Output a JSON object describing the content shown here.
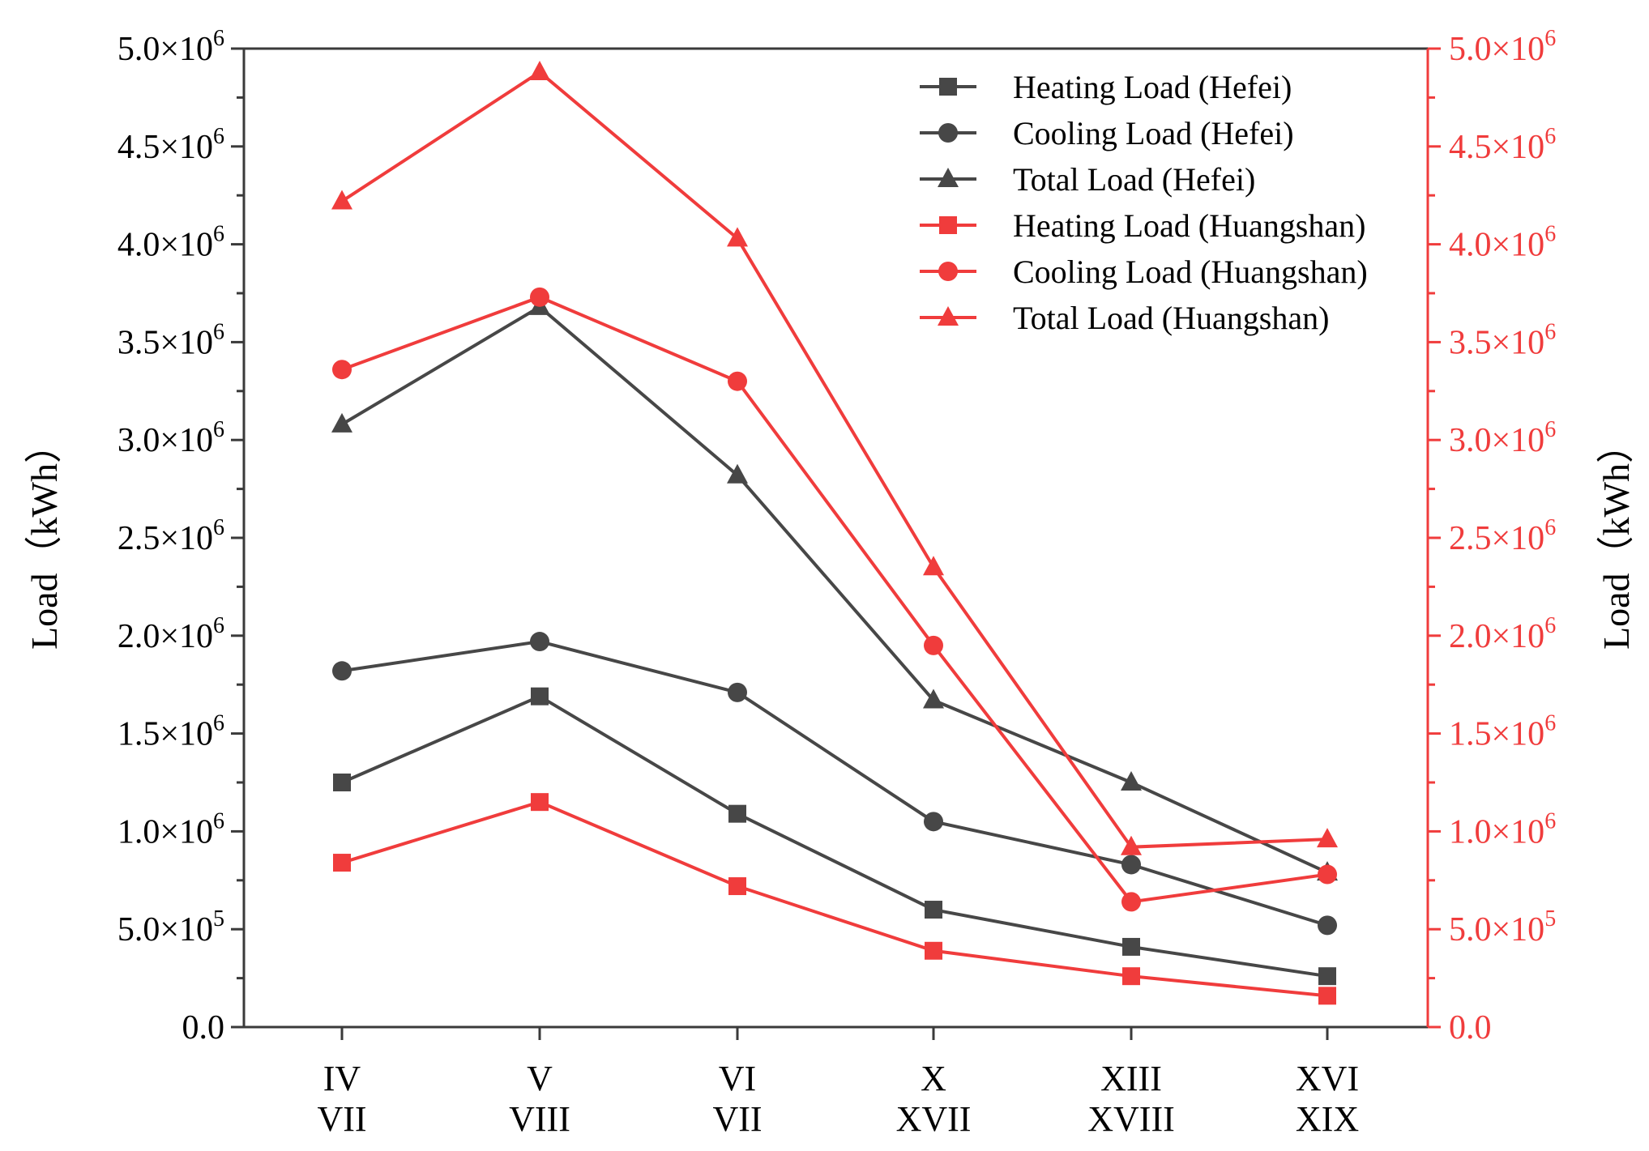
{
  "chart_data": {
    "type": "line",
    "categories": [
      [
        "IV",
        "VII"
      ],
      [
        "V",
        "VIII"
      ],
      [
        "VI",
        "VII"
      ],
      [
        "X",
        "XVII"
      ],
      [
        "XIII",
        "XVIII"
      ],
      [
        "XVI",
        "XIX"
      ]
    ],
    "y_left": {
      "label": "Load（kWh）",
      "ylim": [
        0,
        5000000
      ],
      "ticks": [
        {
          "value": 0,
          "mantissa": "0.0",
          "exp": ""
        },
        {
          "value": 500000,
          "mantissa": "5.0×10",
          "exp": "5"
        },
        {
          "value": 1000000,
          "mantissa": "1.0×10",
          "exp": "6"
        },
        {
          "value": 1500000,
          "mantissa": "1.5×10",
          "exp": "6"
        },
        {
          "value": 2000000,
          "mantissa": "2.0×10",
          "exp": "6"
        },
        {
          "value": 2500000,
          "mantissa": "2.5×10",
          "exp": "6"
        },
        {
          "value": 3000000,
          "mantissa": "3.0×10",
          "exp": "6"
        },
        {
          "value": 3500000,
          "mantissa": "3.5×10",
          "exp": "6"
        },
        {
          "value": 4000000,
          "mantissa": "4.0×10",
          "exp": "6"
        },
        {
          "value": 4500000,
          "mantissa": "4.5×10",
          "exp": "6"
        },
        {
          "value": 5000000,
          "mantissa": "5.0×10",
          "exp": "6"
        }
      ],
      "color": "#000000"
    },
    "y_right": {
      "label": "Load（kWh）",
      "ylim": [
        0,
        5000000
      ],
      "color": "#f03c3c"
    },
    "series": [
      {
        "name": "Heating Load (Hefei)",
        "marker": "square",
        "color": "#474747",
        "values": [
          1250000,
          1690000,
          1090000,
          600000,
          410000,
          260000
        ]
      },
      {
        "name": "Cooling Load (Hefei)",
        "marker": "circle",
        "color": "#474747",
        "values": [
          1820000,
          1970000,
          1710000,
          1050000,
          830000,
          520000
        ]
      },
      {
        "name": "Total Load (Hefei)",
        "marker": "triangle",
        "color": "#474747",
        "values": [
          3080000,
          3680000,
          2820000,
          1670000,
          1250000,
          790000
        ]
      },
      {
        "name": "Heating Load (Huangshan)",
        "marker": "square",
        "color": "#f03c3c",
        "values": [
          840000,
          1150000,
          720000,
          390000,
          260000,
          160000
        ]
      },
      {
        "name": "Cooling Load (Huangshan)",
        "marker": "circle",
        "color": "#f03c3c",
        "values": [
          3360000,
          3730000,
          3300000,
          1950000,
          640000,
          780000
        ]
      },
      {
        "name": "Total Load (Huangshan)",
        "marker": "triangle",
        "color": "#f03c3c",
        "values": [
          4220000,
          4880000,
          4030000,
          2350000,
          920000,
          960000
        ]
      }
    ],
    "legend_position": "top-right"
  }
}
